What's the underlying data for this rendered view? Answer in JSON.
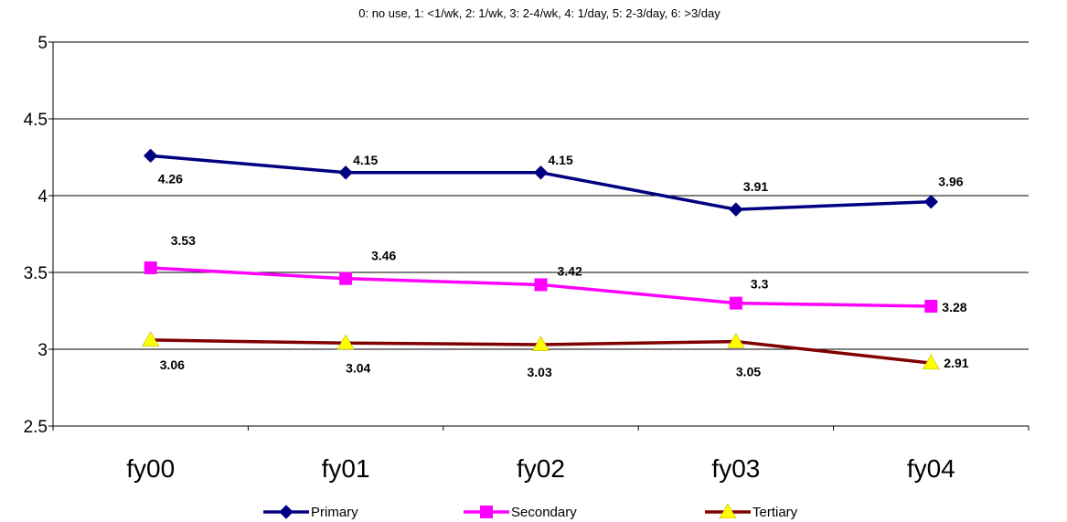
{
  "chart_data": {
    "type": "line",
    "title": "0: no use, 1: <1/wk, 2: 1/wk, 3: 2-4/wk, 4: 1/day, 5: 2-3/day, 6: >3/day",
    "categories": [
      "fy00",
      "fy01",
      "fy02",
      "fy03",
      "fy04"
    ],
    "ylim": [
      2.5,
      5
    ],
    "yticks": [
      "2.5",
      "3",
      "3.5",
      "4",
      "4.5",
      "5"
    ],
    "grid": true,
    "legend_position": "bottom",
    "series": [
      {
        "name": "Primary",
        "values": [
          4.26,
          4.15,
          4.15,
          3.91,
          3.96
        ],
        "labels": [
          "4.26",
          "4.15",
          "4.15",
          "3.91",
          "3.96"
        ],
        "color": "#000080",
        "marker": "diamond"
      },
      {
        "name": "Secondary",
        "values": [
          3.53,
          3.46,
          3.42,
          3.3,
          3.28
        ],
        "labels": [
          "3.53",
          "3.46",
          "3.42",
          "3.3",
          "3.28"
        ],
        "color": "#FF00FF",
        "marker": "square"
      },
      {
        "name": "Tertiary",
        "values": [
          3.06,
          3.04,
          3.03,
          3.05,
          2.91
        ],
        "labels": [
          "3.06",
          "3.04",
          "3.03",
          "3.05",
          "2.91"
        ],
        "color": "#800000",
        "marker": "triangle",
        "marker_color": "#FFFF00"
      }
    ]
  }
}
